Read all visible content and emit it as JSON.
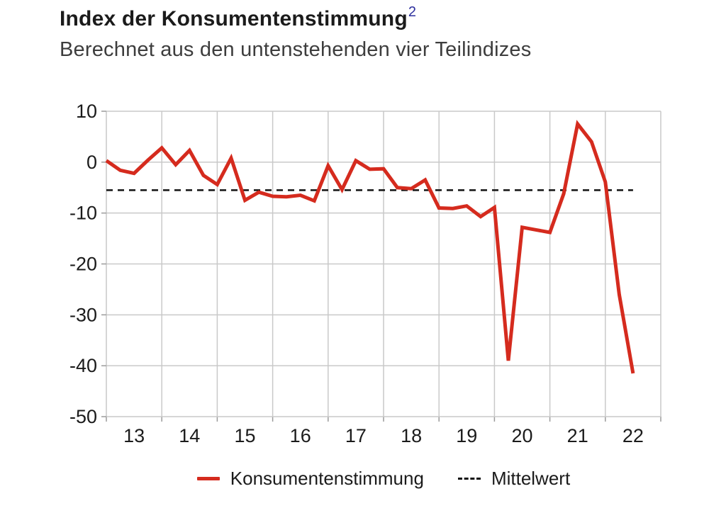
{
  "header": {
    "title": "Index der Konsumentenstimmung",
    "title_superscript": "2",
    "subtitle": "Berechnet aus den untenstehenden vier Teilindizes"
  },
  "legend": {
    "series_label": "Konsumentenstimmung",
    "mean_label": "Mittelwert"
  },
  "colors": {
    "line": "#d52b1e",
    "mean_line": "#111111",
    "grid": "#c9c9c9",
    "tick": "#9b9b9b",
    "text": "#1b1b1b",
    "superscript": "#2d2f9e"
  },
  "chart_data": {
    "type": "line",
    "title": "Index der Konsumentenstimmung",
    "subtitle": "Berechnet aus den untenstehenden vier Teilindizes",
    "grid": true,
    "legend_position": "bottom",
    "ylim": [
      -50,
      10
    ],
    "y_ticks": [
      10,
      0,
      -10,
      -20,
      -30,
      -40,
      -50
    ],
    "x_tick_labels": [
      "13",
      "14",
      "15",
      "16",
      "17",
      "18",
      "19",
      "20",
      "21",
      "22"
    ],
    "points_per_year": 4,
    "series": [
      {
        "name": "Konsumentenstimmung",
        "style": "solid",
        "values": [
          0.3,
          -1.6,
          -2.2,
          0.4,
          2.8,
          -0.5,
          2.3,
          -2.6,
          -4.4,
          0.8,
          -7.5,
          -5.9,
          -6.7,
          -6.8,
          -6.5,
          -7.6,
          -0.7,
          -5.4,
          0.3,
          -1.4,
          -1.3,
          -5.0,
          -5.2,
          -3.5,
          -9.0,
          -9.1,
          -8.6,
          -10.7,
          -8.9,
          -39.0,
          -12.8,
          -13.3,
          -13.8,
          -6.2,
          7.5,
          4.0,
          -3.9,
          -26.0,
          -41.5
        ]
      },
      {
        "name": "Mittelwert",
        "style": "dashed",
        "value": -5.5
      }
    ]
  }
}
